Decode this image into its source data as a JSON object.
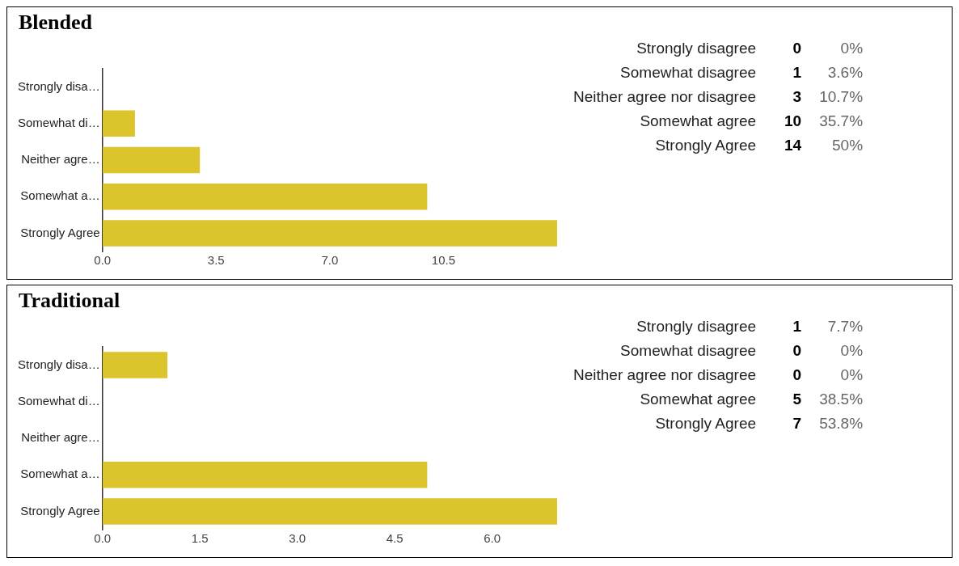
{
  "chart_data": [
    {
      "type": "bar",
      "orientation": "horizontal",
      "title": "Blended",
      "categories": [
        "Strongly disa…",
        "Somewhat di…",
        "Neither agre…",
        "Somewhat a…",
        "Strongly Agree"
      ],
      "values": [
        0,
        1,
        3,
        10,
        14
      ],
      "color": "#dcc42c",
      "xlim": [
        0,
        14
      ],
      "xticks": [
        {
          "value": 0,
          "label": "0.0"
        },
        {
          "value": 3.5,
          "label": "3.5"
        },
        {
          "value": 7,
          "label": "7.0"
        },
        {
          "value": 10.5,
          "label": "10.5"
        }
      ],
      "grid": false,
      "legend": false
    },
    {
      "type": "other",
      "annotations": [
        "Strongly disagree",
        "0",
        "0%",
        "Somewhat disagree",
        "1",
        "3.6%",
        "Neither agree nor disagree",
        "3",
        "10.7%",
        "Somewhat agree",
        "10",
        "35.7%",
        "Strongly Agree",
        "14",
        "50%"
      ]
    },
    {
      "type": "bar",
      "orientation": "horizontal",
      "title": "Traditional",
      "categories": [
        "Strongly disa…",
        "Somewhat di…",
        "Neither agre…",
        "Somewhat a…",
        "Strongly Agree"
      ],
      "values": [
        1,
        0,
        0,
        5,
        7
      ],
      "color": "#dcc42c",
      "xlim": [
        0,
        7
      ],
      "xticks": [
        {
          "value": 0,
          "label": "0.0"
        },
        {
          "value": 1.5,
          "label": "1.5"
        },
        {
          "value": 3,
          "label": "3.0"
        },
        {
          "value": 4.5,
          "label": "4.5"
        },
        {
          "value": 6,
          "label": "6.0"
        }
      ],
      "grid": false,
      "legend": false
    },
    {
      "type": "other",
      "annotations": [
        "Strongly disagree",
        "1",
        "7.7%",
        "Somewhat disagree",
        "0",
        "0%",
        "Neither agree nor disagree",
        "0",
        "0%",
        "Somewhat agree",
        "5",
        "38.5%",
        "Strongly Agree",
        "7",
        "53.8%"
      ]
    }
  ]
}
